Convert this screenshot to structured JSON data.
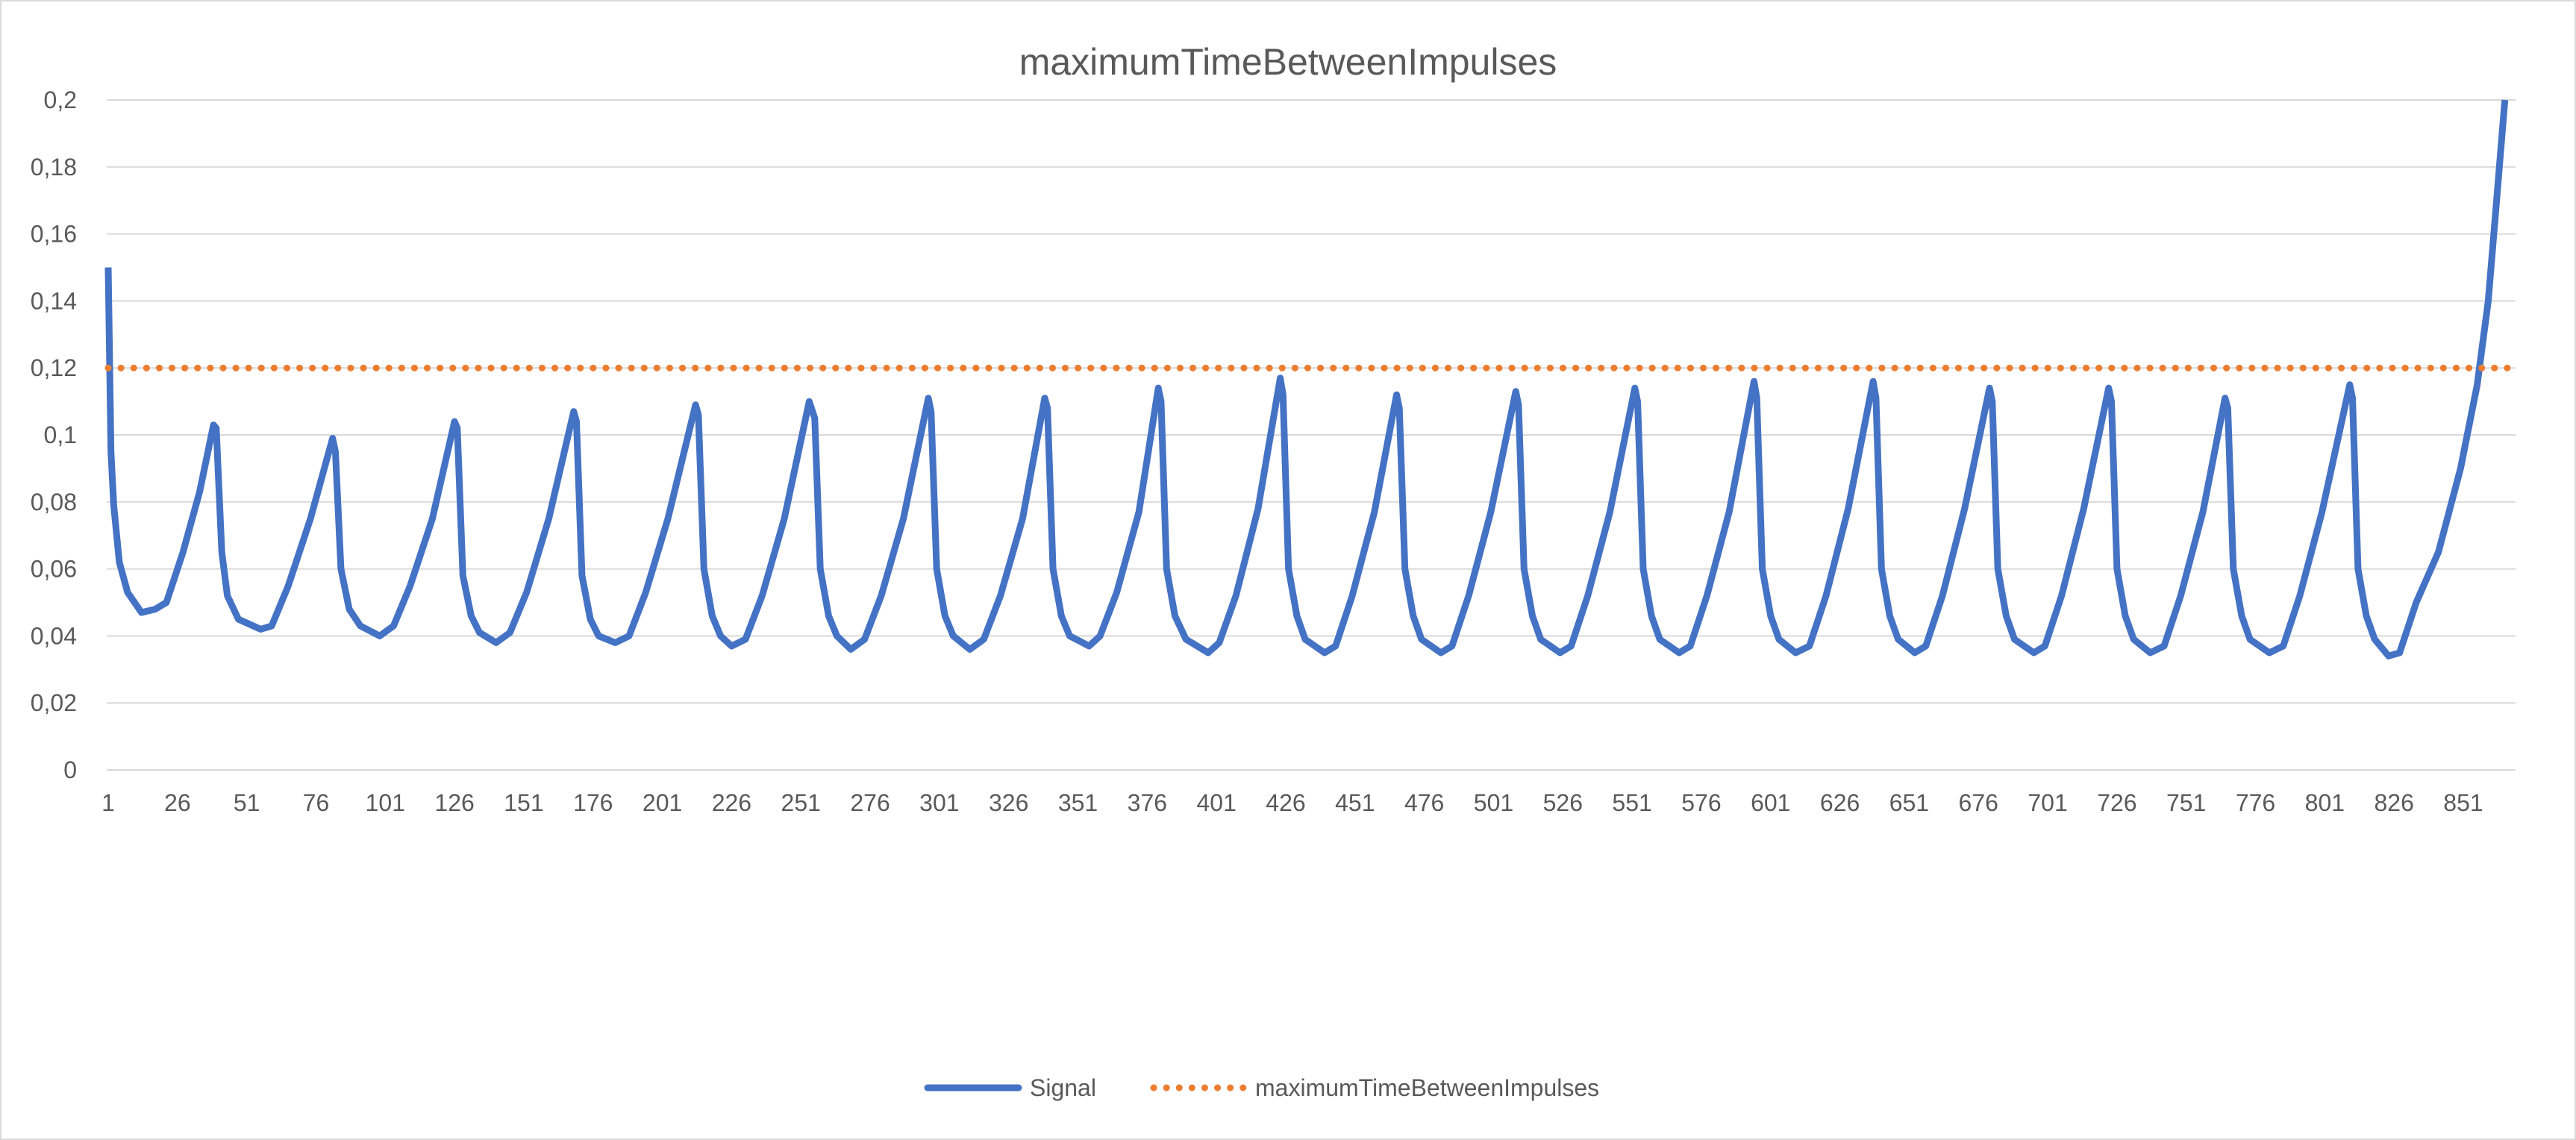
{
  "chart_data": {
    "type": "line",
    "title": "maximumTimeBetweenImpulses",
    "xlabel": "",
    "ylabel": "",
    "ylim": [
      0,
      0.2
    ],
    "xlim": [
      1,
      869
    ],
    "y_ticks": [
      "0",
      "0,02",
      "0,04",
      "0,06",
      "0,08",
      "0,1",
      "0,12",
      "0,14",
      "0,16",
      "0,18",
      "0,2"
    ],
    "x_ticks": [
      "1",
      "26",
      "51",
      "76",
      "101",
      "126",
      "151",
      "176",
      "201",
      "226",
      "251",
      "276",
      "301",
      "326",
      "351",
      "376",
      "401",
      "426",
      "451",
      "476",
      "501",
      "526",
      "551",
      "576",
      "601",
      "626",
      "651",
      "676",
      "701",
      "726",
      "751",
      "776",
      "801",
      "826",
      "851"
    ],
    "grid": true,
    "legend_position": "bottom",
    "colors": {
      "Signal": "#4472C4",
      "maximumTimeBetweenImpulses": "#ED7D31",
      "grid": "#D9D9D9",
      "text": "#595959"
    },
    "series": [
      {
        "name": "Signal",
        "style": "solid",
        "points": [
          [
            1,
            0.15
          ],
          [
            2,
            0.095
          ],
          [
            3,
            0.079
          ],
          [
            5,
            0.062
          ],
          [
            8,
            0.053
          ],
          [
            13,
            0.047
          ],
          [
            18,
            0.048
          ],
          [
            22,
            0.05
          ],
          [
            28,
            0.065
          ],
          [
            34,
            0.083
          ],
          [
            39,
            0.103
          ],
          [
            40,
            0.102
          ],
          [
            42,
            0.065
          ],
          [
            44,
            0.052
          ],
          [
            48,
            0.045
          ],
          [
            56,
            0.042
          ],
          [
            60,
            0.043
          ],
          [
            66,
            0.055
          ],
          [
            74,
            0.075
          ],
          [
            82,
            0.099
          ],
          [
            83,
            0.095
          ],
          [
            85,
            0.06
          ],
          [
            88,
            0.048
          ],
          [
            92,
            0.043
          ],
          [
            99,
            0.04
          ],
          [
            104,
            0.043
          ],
          [
            110,
            0.055
          ],
          [
            118,
            0.075
          ],
          [
            126,
            0.104
          ],
          [
            127,
            0.102
          ],
          [
            129,
            0.058
          ],
          [
            132,
            0.046
          ],
          [
            135,
            0.041
          ],
          [
            141,
            0.038
          ],
          [
            146,
            0.041
          ],
          [
            152,
            0.053
          ],
          [
            160,
            0.075
          ],
          [
            169,
            0.107
          ],
          [
            170,
            0.104
          ],
          [
            172,
            0.058
          ],
          [
            175,
            0.045
          ],
          [
            178,
            0.04
          ],
          [
            184,
            0.038
          ],
          [
            189,
            0.04
          ],
          [
            195,
            0.053
          ],
          [
            203,
            0.075
          ],
          [
            213,
            0.109
          ],
          [
            214,
            0.106
          ],
          [
            216,
            0.06
          ],
          [
            219,
            0.046
          ],
          [
            222,
            0.04
          ],
          [
            226,
            0.037
          ],
          [
            231,
            0.039
          ],
          [
            237,
            0.052
          ],
          [
            245,
            0.075
          ],
          [
            254,
            0.11
          ],
          [
            256,
            0.105
          ],
          [
            258,
            0.06
          ],
          [
            261,
            0.046
          ],
          [
            264,
            0.04
          ],
          [
            269,
            0.036
          ],
          [
            274,
            0.039
          ],
          [
            280,
            0.052
          ],
          [
            288,
            0.075
          ],
          [
            297,
            0.111
          ],
          [
            298,
            0.107
          ],
          [
            300,
            0.06
          ],
          [
            303,
            0.046
          ],
          [
            306,
            0.04
          ],
          [
            312,
            0.036
          ],
          [
            317,
            0.039
          ],
          [
            323,
            0.052
          ],
          [
            331,
            0.075
          ],
          [
            339,
            0.111
          ],
          [
            340,
            0.108
          ],
          [
            342,
            0.06
          ],
          [
            345,
            0.046
          ],
          [
            348,
            0.04
          ],
          [
            355,
            0.037
          ],
          [
            359,
            0.04
          ],
          [
            365,
            0.053
          ],
          [
            373,
            0.077
          ],
          [
            380,
            0.114
          ],
          [
            381,
            0.11
          ],
          [
            383,
            0.06
          ],
          [
            386,
            0.046
          ],
          [
            390,
            0.039
          ],
          [
            398,
            0.035
          ],
          [
            402,
            0.038
          ],
          [
            408,
            0.052
          ],
          [
            416,
            0.078
          ],
          [
            424,
            0.117
          ],
          [
            425,
            0.112
          ],
          [
            427,
            0.06
          ],
          [
            430,
            0.046
          ],
          [
            433,
            0.039
          ],
          [
            440,
            0.035
          ],
          [
            444,
            0.037
          ],
          [
            450,
            0.052
          ],
          [
            458,
            0.077
          ],
          [
            466,
            0.112
          ],
          [
            467,
            0.108
          ],
          [
            469,
            0.06
          ],
          [
            472,
            0.046
          ],
          [
            475,
            0.039
          ],
          [
            482,
            0.035
          ],
          [
            486,
            0.037
          ],
          [
            492,
            0.052
          ],
          [
            500,
            0.077
          ],
          [
            509,
            0.113
          ],
          [
            510,
            0.109
          ],
          [
            512,
            0.06
          ],
          [
            515,
            0.046
          ],
          [
            518,
            0.039
          ],
          [
            525,
            0.035
          ],
          [
            529,
            0.037
          ],
          [
            535,
            0.052
          ],
          [
            543,
            0.077
          ],
          [
            552,
            0.114
          ],
          [
            553,
            0.11
          ],
          [
            555,
            0.06
          ],
          [
            558,
            0.046
          ],
          [
            561,
            0.039
          ],
          [
            568,
            0.035
          ],
          [
            572,
            0.037
          ],
          [
            578,
            0.052
          ],
          [
            586,
            0.077
          ],
          [
            595,
            0.116
          ],
          [
            596,
            0.111
          ],
          [
            598,
            0.06
          ],
          [
            601,
            0.046
          ],
          [
            604,
            0.039
          ],
          [
            610,
            0.035
          ],
          [
            615,
            0.037
          ],
          [
            621,
            0.052
          ],
          [
            629,
            0.078
          ],
          [
            638,
            0.116
          ],
          [
            639,
            0.111
          ],
          [
            641,
            0.06
          ],
          [
            644,
            0.046
          ],
          [
            647,
            0.039
          ],
          [
            653,
            0.035
          ],
          [
            657,
            0.037
          ],
          [
            663,
            0.052
          ],
          [
            671,
            0.078
          ],
          [
            680,
            0.114
          ],
          [
            681,
            0.11
          ],
          [
            683,
            0.06
          ],
          [
            686,
            0.046
          ],
          [
            689,
            0.039
          ],
          [
            696,
            0.035
          ],
          [
            700,
            0.037
          ],
          [
            706,
            0.052
          ],
          [
            714,
            0.078
          ],
          [
            723,
            0.114
          ],
          [
            724,
            0.11
          ],
          [
            726,
            0.06
          ],
          [
            729,
            0.046
          ],
          [
            732,
            0.039
          ],
          [
            738,
            0.035
          ],
          [
            743,
            0.037
          ],
          [
            749,
            0.052
          ],
          [
            757,
            0.077
          ],
          [
            765,
            0.111
          ],
          [
            766,
            0.108
          ],
          [
            768,
            0.06
          ],
          [
            771,
            0.046
          ],
          [
            774,
            0.039
          ],
          [
            781,
            0.035
          ],
          [
            786,
            0.037
          ],
          [
            792,
            0.052
          ],
          [
            800,
            0.077
          ],
          [
            810,
            0.115
          ],
          [
            811,
            0.111
          ],
          [
            813,
            0.06
          ],
          [
            816,
            0.046
          ],
          [
            819,
            0.039
          ],
          [
            824,
            0.034
          ],
          [
            828,
            0.035
          ],
          [
            834,
            0.05
          ],
          [
            842,
            0.065
          ],
          [
            850,
            0.09
          ],
          [
            856,
            0.115
          ],
          [
            860,
            0.14
          ],
          [
            863,
            0.17
          ],
          [
            866,
            0.2
          ]
        ]
      },
      {
        "name": "maximumTimeBetweenImpulses",
        "style": "dotted",
        "points": [
          [
            1,
            0.12
          ],
          [
            869,
            0.12
          ]
        ]
      }
    ]
  }
}
